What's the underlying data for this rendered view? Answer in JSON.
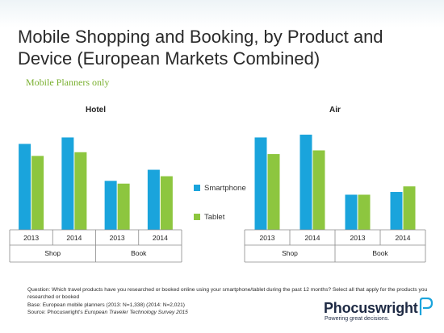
{
  "title": "Mobile Shopping and Booking, by Product and Device (European Markets Combined)",
  "subtitle": "Mobile Planners only",
  "colors": {
    "smartphone": "#1aa4dc",
    "tablet": "#8dc63f"
  },
  "legend": {
    "smartphone": "Smartphone",
    "tablet": "Tablet"
  },
  "chart_data": [
    {
      "type": "bar",
      "title": "Hotel",
      "categories": [
        "2013",
        "2014",
        "2013",
        "2014"
      ],
      "groups": [
        {
          "label": "Shop",
          "span": 2
        },
        {
          "label": "Book",
          "span": 2
        }
      ],
      "series": [
        {
          "name": "Smartphone",
          "values": [
            93,
            100,
            53,
            65
          ]
        },
        {
          "name": "Tablet",
          "values": [
            80,
            84,
            50,
            58
          ]
        }
      ],
      "ylim": [
        0,
        110
      ],
      "grid": false,
      "legend_position": "right"
    },
    {
      "type": "bar",
      "title": "Air",
      "categories": [
        "2013",
        "2014",
        "2013",
        "2014"
      ],
      "groups": [
        {
          "label": "Shop",
          "span": 2
        },
        {
          "label": "Book",
          "span": 2
        }
      ],
      "series": [
        {
          "name": "Smartphone",
          "values": [
            100,
            103,
            38,
            41
          ]
        },
        {
          "name": "Tablet",
          "values": [
            82,
            86,
            38,
            47
          ]
        }
      ],
      "ylim": [
        0,
        110
      ],
      "grid": false,
      "legend_position": "left"
    }
  ],
  "footnote": {
    "question": "Question: Which travel products have you researched or booked online using your smartphone/tablet during the past 12 months? Select all that apply for the products you researched or booked",
    "base": "Base: European mobile planners (2013: N=1,338) (2014: N=2,021)",
    "source_prefix": "Source: Phocuswright's ",
    "source_title": "European Traveler Technology Survey 2015"
  },
  "logo": {
    "name": "Phocuswright",
    "tagline": "Powering great decisions."
  }
}
